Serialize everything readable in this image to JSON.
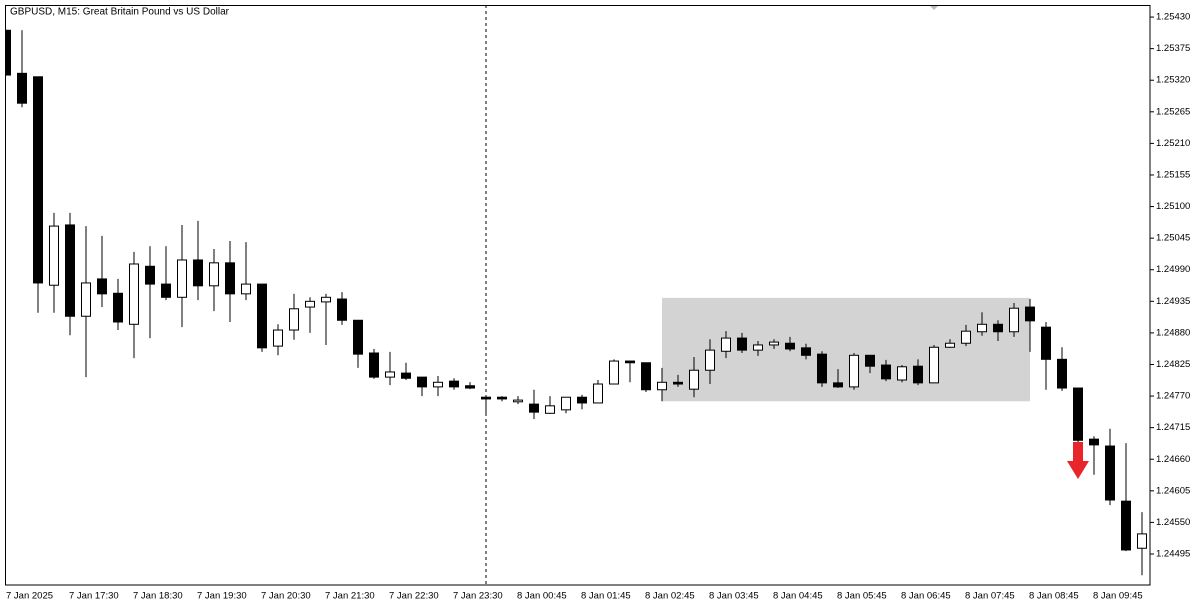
{
  "chart_data": {
    "type": "candlestick",
    "title": "GBPUSD, M15:  Great Britain Pound vs US Dollar",
    "categories": [
      "7 Jan 2025",
      null,
      null,
      null,
      "7 Jan 17:30",
      null,
      null,
      null,
      "7 Jan 18:30",
      null,
      null,
      null,
      "7 Jan 19:30",
      null,
      null,
      null,
      "7 Jan 20:30",
      null,
      null,
      null,
      "7 Jan 21:30",
      null,
      null,
      null,
      "7 Jan 22:30",
      null,
      null,
      null,
      "7 Jan 23:30",
      null,
      null,
      null,
      "8 Jan 00:45",
      null,
      null,
      null,
      "8 Jan 01:45",
      null,
      null,
      null,
      "8 Jan 02:45",
      null,
      null,
      null,
      "8 Jan 03:45",
      null,
      null,
      null,
      "8 Jan 04:45",
      null,
      null,
      null,
      "8 Jan 05:45",
      null,
      null,
      null,
      "8 Jan 06:45",
      null,
      null,
      null,
      "8 Jan 07:45",
      null,
      null,
      null,
      "8 Jan 08:45",
      null,
      null,
      null,
      "8 Jan 09:45",
      null,
      null,
      null
    ],
    "open": [
      1.25407,
      1.25332,
      1.25326,
      1.24963,
      1.25068,
      1.24909,
      1.24974,
      1.24949,
      1.24895,
      1.24996,
      1.24965,
      1.24942,
      1.25007,
      1.24962,
      1.25002,
      1.24948,
      1.24965,
      1.24857,
      1.24885,
      1.24925,
      1.24934,
      1.24939,
      1.24902,
      1.24845,
      1.24803,
      1.2481,
      1.24803,
      1.24786,
      1.24796,
      1.24788,
      1.24768,
      1.24768,
      1.2476,
      1.24756,
      1.2474,
      1.24746,
      1.24768,
      1.24758,
      1.24791,
      1.24831,
      1.24828,
      1.24781,
      1.24794,
      1.24782,
      1.24815,
      1.24848,
      1.24871,
      1.2485,
      1.24859,
      1.24862,
      1.24854,
      1.24843,
      1.24793,
      1.24786,
      1.24841,
      1.24824,
      1.24798,
      1.24822,
      1.24793,
      1.24855,
      1.24862,
      1.24882,
      1.24895,
      1.24882,
      1.24925,
      1.2489,
      1.24834,
      1.24784,
      1.24695,
      1.24683,
      1.24587,
      1.24505
    ],
    "high": [
      1.25407,
      1.25407,
      1.25326,
      1.25089,
      1.25089,
      1.25066,
      1.25049,
      1.24974,
      1.25021,
      1.25031,
      1.25031,
      1.25068,
      1.25075,
      1.25026,
      1.2504,
      1.25038,
      1.24965,
      1.24895,
      1.24948,
      1.24942,
      1.24948,
      1.24951,
      1.24902,
      1.24852,
      1.24847,
      1.24828,
      1.24803,
      1.24805,
      1.24801,
      1.24794,
      1.24768,
      1.2477,
      1.2477,
      1.24781,
      1.2477,
      1.24768,
      1.24772,
      1.24798,
      1.24834,
      1.24831,
      1.24828,
      1.24819,
      1.24807,
      1.24838,
      1.24869,
      1.24883,
      1.2488,
      1.24866,
      1.24869,
      1.24873,
      1.24861,
      1.24848,
      1.24817,
      1.24845,
      1.24841,
      1.24833,
      1.24824,
      1.24834,
      1.24859,
      1.24869,
      1.24894,
      1.24916,
      1.24902,
      1.24932,
      1.24939,
      1.24899,
      1.24855,
      1.24784,
      1.247,
      1.24713,
      1.24688,
      1.24568
    ],
    "low": [
      1.25329,
      1.25273,
      1.24915,
      1.24915,
      1.24876,
      1.24803,
      1.24925,
      1.24885,
      1.24836,
      1.24871,
      1.24937,
      1.2489,
      1.24937,
      1.24918,
      1.24899,
      1.24937,
      1.24847,
      1.24841,
      1.24868,
      1.2488,
      1.24859,
      1.24894,
      1.24819,
      1.248,
      1.24789,
      1.24798,
      1.2477,
      1.2477,
      1.24781,
      1.24782,
      1.2474,
      1.24761,
      1.24756,
      1.2473,
      1.24739,
      1.2474,
      1.24747,
      1.24758,
      1.24791,
      1.24794,
      1.24777,
      1.24761,
      1.24786,
      1.24768,
      1.24791,
      1.24836,
      1.24845,
      1.2484,
      1.24852,
      1.24848,
      1.24834,
      1.24786,
      1.24784,
      1.24781,
      1.2481,
      1.24796,
      1.24794,
      1.24789,
      1.24793,
      1.24854,
      1.24857,
      1.24875,
      1.24866,
      1.24873,
      1.24847,
      1.24781,
      1.24779,
      1.24685,
      1.24633,
      1.2458,
      1.245,
      1.24458
    ],
    "close": [
      1.25329,
      1.2528,
      1.24967,
      1.25066,
      1.24909,
      1.24967,
      1.24948,
      1.24899,
      1.25,
      1.24965,
      1.24942,
      1.25007,
      1.24962,
      1.25002,
      1.24948,
      1.24965,
      1.24854,
      1.24885,
      1.24922,
      1.24935,
      1.24942,
      1.24902,
      1.24843,
      1.24803,
      1.24812,
      1.24801,
      1.24786,
      1.24794,
      1.24786,
      1.24784,
      1.24765,
      1.24765,
      1.24763,
      1.24742,
      1.24753,
      1.24768,
      1.24758,
      1.24791,
      1.24831,
      1.24828,
      1.24781,
      1.24794,
      1.24791,
      1.24815,
      1.2485,
      1.24871,
      1.2485,
      1.24859,
      1.24864,
      1.24852,
      1.24841,
      1.24793,
      1.24786,
      1.24841,
      1.24822,
      1.248,
      1.24821,
      1.24793,
      1.24855,
      1.24862,
      1.24883,
      1.24895,
      1.24882,
      1.24923,
      1.24901,
      1.24834,
      1.24784,
      1.24693,
      1.24685,
      1.24589,
      1.24502,
      1.2453
    ],
    "up_color": "#ffffff",
    "down_color": "#000000",
    "zone": {
      "top": 1.24941,
      "bottom": 1.24761,
      "color": "#d3d3d3"
    },
    "ylim": [
      1.24441,
      1.25451
    ],
    "yticks": [
      {
        "value": 1.2543,
        "label": "1.25430"
      },
      {
        "value": 1.25375,
        "label": "1.25375"
      },
      {
        "value": 1.2532,
        "label": "1.25320"
      },
      {
        "value": 1.25265,
        "label": "1.25265"
      },
      {
        "value": 1.2521,
        "label": "1.25210"
      },
      {
        "value": 1.25155,
        "label": "1.25155"
      },
      {
        "value": 1.251,
        "label": "1.25100"
      },
      {
        "value": 1.25045,
        "label": "1.25045"
      },
      {
        "value": 1.2499,
        "label": "1.24990"
      },
      {
        "value": 1.24935,
        "label": "1.24935"
      },
      {
        "value": 1.2488,
        "label": "1.24880"
      },
      {
        "value": 1.24825,
        "label": "1.24825"
      },
      {
        "value": 1.2477,
        "label": "1.24770"
      },
      {
        "value": 1.24715,
        "label": "1.24715"
      },
      {
        "value": 1.2466,
        "label": "1.24660"
      },
      {
        "value": 1.24605,
        "label": "1.24605"
      },
      {
        "value": 1.2455,
        "label": "1.24550"
      },
      {
        "value": 1.24495,
        "label": "1.24495"
      }
    ]
  }
}
